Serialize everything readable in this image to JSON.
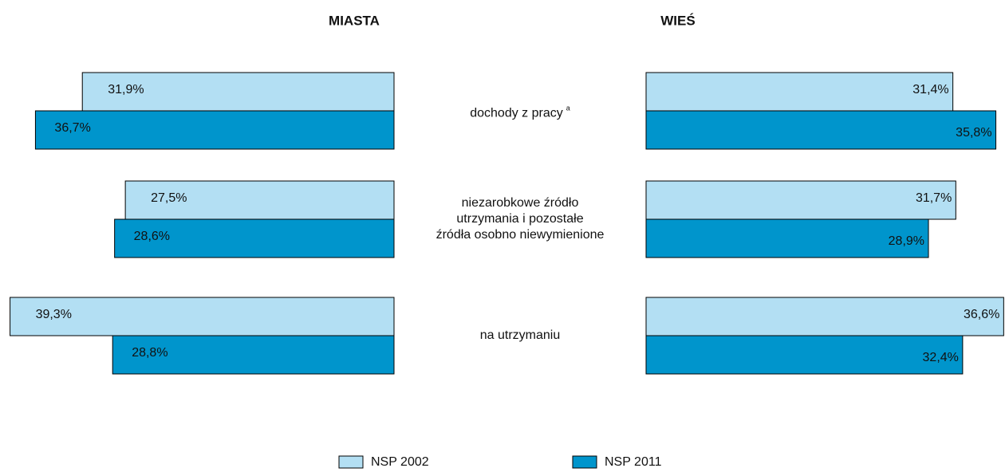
{
  "chart_data": {
    "type": "butterfly",
    "panels": [
      "MIASTA",
      "WIEŚ"
    ],
    "categories": [
      "dochody z pracy",
      "niezarobkowe źródło\nutrzymania i pozostałe\nźródła osobno niewymienione",
      "na utrzymaniu"
    ],
    "category_notes": [
      "a",
      null,
      null
    ],
    "xlim": [
      0,
      40
    ],
    "series": [
      {
        "name": "NSP 2002",
        "color": "#b3dff3",
        "values": [
          31.9,
          27.5,
          39.3
        ],
        "value_labels": [
          "31,9%",
          "27,5%",
          "39,3%"
        ],
        "values_right": [
          31.4,
          31.7,
          36.6
        ],
        "value_labels_right": [
          "31,4%",
          "31,7%",
          "36,6%"
        ]
      },
      {
        "name": "NSP 2011",
        "color": "#0095cc",
        "values": [
          36.7,
          28.6,
          28.8
        ],
        "value_labels": [
          "36,7%",
          "28,6%",
          "28,8%"
        ],
        "values_right": [
          35.8,
          28.9,
          32.4
        ],
        "value_labels_right": [
          "35,8%",
          "28,9%",
          "32,4%"
        ]
      }
    ]
  }
}
